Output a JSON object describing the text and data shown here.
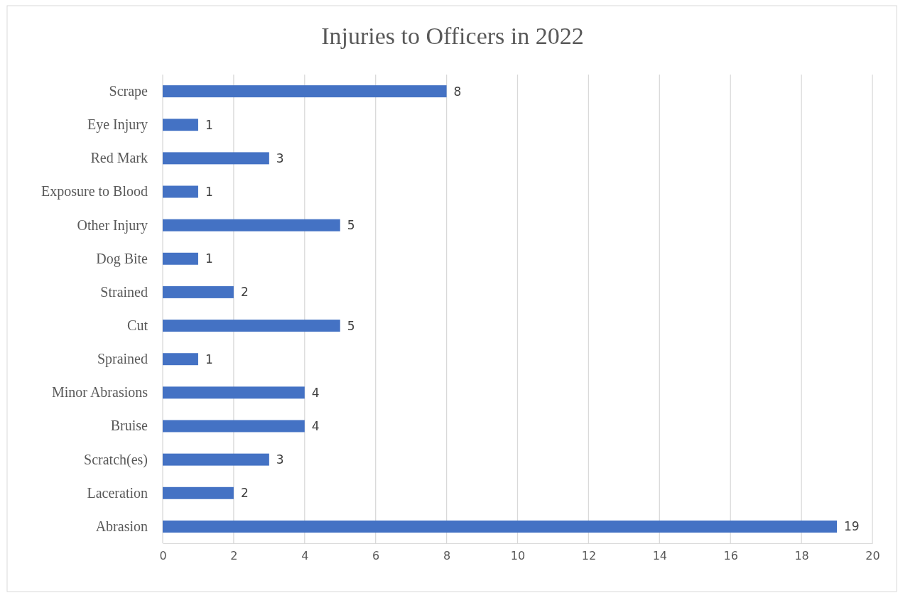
{
  "chart_data": {
    "type": "bar",
    "orientation": "horizontal",
    "title": "Injuries to Officers in 2022",
    "categories": [
      "Scrape",
      "Eye Injury",
      "Red Mark",
      "Exposure to Blood",
      "Other Injury",
      "Dog Bite",
      "Strained",
      "Cut",
      "Sprained",
      "Minor Abrasions",
      "Bruise",
      "Scratch(es)",
      "Laceration",
      "Abrasion"
    ],
    "values": [
      8,
      1,
      3,
      1,
      5,
      1,
      2,
      5,
      1,
      4,
      4,
      3,
      2,
      19
    ],
    "color": "#4472c4",
    "xlim": [
      0,
      20
    ],
    "xticks": [
      0,
      2,
      4,
      6,
      8,
      10,
      12,
      14,
      16,
      18,
      20
    ],
    "grid": "x",
    "data_labels": true
  }
}
